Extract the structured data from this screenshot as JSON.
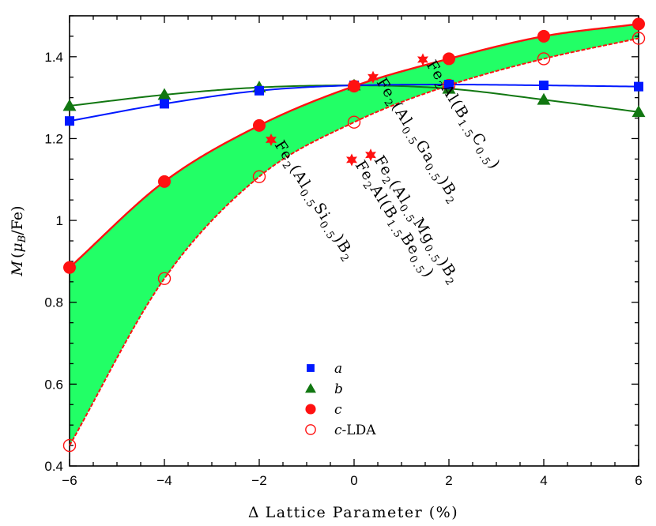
{
  "chart_data": {
    "type": "line",
    "xlabel_symbol": "Δ",
    "xlabel_text": "Lattice Parameter (%)",
    "ylabel_var": "M",
    "ylabel_open": "(",
    "ylabel_mu": "μ",
    "ylabel_sub": "B",
    "ylabel_close": "/Fe)",
    "xlim": [
      -6,
      6
    ],
    "ylim": [
      0.4,
      1.5
    ],
    "xticks": [
      -6,
      -4,
      -2,
      0,
      2,
      4,
      6
    ],
    "xtick_labels": [
      "−6",
      "−4",
      "−2",
      "0",
      "2",
      "4",
      "6"
    ],
    "yticks": [
      0.4,
      0.6,
      0.8,
      1.0,
      1.2,
      1.4
    ],
    "ytick_labels": [
      "0.4",
      "0.6",
      "0.8",
      "1",
      "1.2",
      "1.4"
    ],
    "legend_position": "bottom-center",
    "shaded_band": {
      "between": [
        "c",
        "c-LDA"
      ],
      "color": "#22ff66"
    },
    "series": [
      {
        "name": "a",
        "color": "#0018ff",
        "marker": "square",
        "x": [
          -6,
          -4,
          -2,
          0,
          2,
          4,
          6
        ],
        "y": [
          1.243,
          1.285,
          1.317,
          1.33,
          1.332,
          1.33,
          1.327
        ]
      },
      {
        "name": "b",
        "color": "#117711",
        "marker": "triangle",
        "x": [
          -6,
          -4,
          -2,
          0,
          2,
          4,
          6
        ],
        "y": [
          1.28,
          1.307,
          1.325,
          1.33,
          1.322,
          1.295,
          1.265
        ]
      },
      {
        "name": "c",
        "color": "#ff1111",
        "marker": "circle",
        "x": [
          -6,
          -4,
          -2,
          0,
          2,
          4,
          6
        ],
        "y": [
          0.885,
          1.095,
          1.232,
          1.328,
          1.395,
          1.45,
          1.48
        ]
      },
      {
        "name": "c-LDA",
        "legend_main": "c",
        "legend_suffix": "-LDA",
        "color": "#ff1111",
        "marker": "open-circle",
        "x": [
          -6,
          -4,
          -2,
          0,
          2,
          4,
          6
        ],
        "y": [
          0.45,
          0.858,
          1.107,
          1.24,
          1.33,
          1.395,
          1.445
        ]
      }
    ],
    "annotations": [
      {
        "id": "ann-fe2-al-si",
        "marker_x": -1.75,
        "marker_y": 1.197,
        "parts": [
          [
            "Fe"
          ],
          [
            "2",
            "sub"
          ],
          [
            "(Al"
          ],
          [
            "0.5",
            "sub"
          ],
          [
            "Si"
          ],
          [
            "0.5",
            "sub"
          ],
          [
            ")B"
          ],
          [
            "2",
            "sub"
          ]
        ]
      },
      {
        "id": "ann-fe2-al-b-be",
        "marker_x": -0.05,
        "marker_y": 1.148,
        "parts": [
          [
            "Fe"
          ],
          [
            "2",
            "sub"
          ],
          [
            "Al(B"
          ],
          [
            "1.5",
            "sub"
          ],
          [
            "Be"
          ],
          [
            "0.5",
            "sub"
          ],
          [
            ")"
          ]
        ]
      },
      {
        "id": "ann-fe2-al-mg",
        "marker_x": 0.35,
        "marker_y": 1.16,
        "parts": [
          [
            "Fe"
          ],
          [
            "2",
            "sub"
          ],
          [
            "(Al"
          ],
          [
            "0.5",
            "sub"
          ],
          [
            "Mg"
          ],
          [
            "0.5",
            "sub"
          ],
          [
            ")B"
          ],
          [
            "2",
            "sub"
          ]
        ]
      },
      {
        "id": "ann-fe2-al-ga",
        "marker_x": 0.4,
        "marker_y": 1.35,
        "parts": [
          [
            "Fe"
          ],
          [
            "2",
            "sub"
          ],
          [
            "(Al"
          ],
          [
            "0.5",
            "sub"
          ],
          [
            "Ga"
          ],
          [
            "0.5",
            "sub"
          ],
          [
            ")B"
          ],
          [
            "2",
            "sub"
          ]
        ]
      },
      {
        "id": "ann-fe2-al-b-c",
        "marker_x": 1.45,
        "marker_y": 1.393,
        "parts": [
          [
            "Fe"
          ],
          [
            "2",
            "sub"
          ],
          [
            "Al(B"
          ],
          [
            "1.5",
            "sub"
          ],
          [
            "C"
          ],
          [
            "0.5",
            "sub"
          ],
          [
            ")"
          ]
        ]
      }
    ]
  }
}
